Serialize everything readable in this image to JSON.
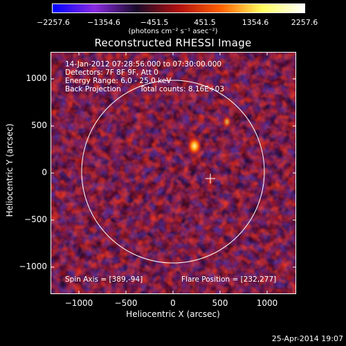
{
  "colorbar": {
    "ticks": [
      "−2257.6",
      "−1354.6",
      "−451.5",
      "451.5",
      "1354.6",
      "2257.6"
    ],
    "units": "(photons cm⁻² s⁻¹ asec⁻²)",
    "colors": [
      "#0000ff",
      "#8a2be2",
      "#1a0a2a",
      "#b01010",
      "#ff6000",
      "#ffff60",
      "#ffffff"
    ]
  },
  "title": "Reconstructed RHESSI Image",
  "info": {
    "time_range": "14-Jan-2012 07:28:56.000 to 07:30:00.000",
    "detectors": "Detectors: 7F 8F 9F, Att 0",
    "energy_range": "Energy Range: 6.0 - 25.0 keV",
    "back_projection": "Back Projection",
    "total_counts": "Total counts: 8.16E+03",
    "spin_axis": "Spin Axis = [389,-94]",
    "flare_position": "Flare Position = [232,277]"
  },
  "axes": {
    "xlabel": "Heliocentric X (arcsec)",
    "ylabel": "Heliocentric Y (arcsec)",
    "x_ticks": [
      "−1000",
      "−500",
      "0",
      "500",
      "1000"
    ],
    "y_ticks": [
      "1000",
      "500",
      "0",
      "−500",
      "−1000"
    ]
  },
  "footer": {
    "date": "25-Apr-2014 19:07"
  }
}
